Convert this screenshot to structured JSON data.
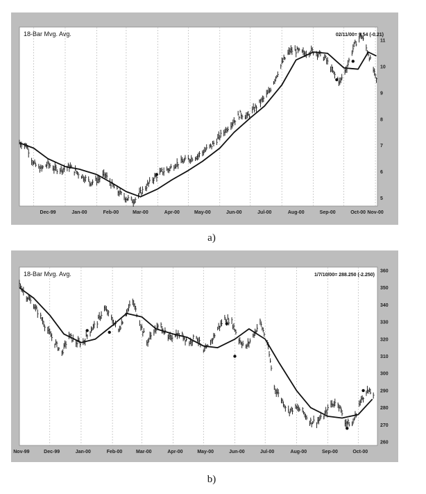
{
  "chart_data": [
    {
      "type": "line",
      "caption": "a)",
      "title": "18-Bar Mvg. Avg.",
      "readout": "02/11/00= 9.54 (-0.21)",
      "x_tick_labels": [
        "Dec-99",
        "Jan-00",
        "Feb-00",
        "Mar-00",
        "Apr-00",
        "May-00",
        "Jun-00",
        "Jul-00",
        "Aug-00",
        "Sep-00",
        "Oct-00",
        "Nov-00"
      ],
      "y_tick_labels": [
        "5",
        "6",
        "7",
        "8",
        "9",
        "10",
        "11"
      ],
      "ylim": [
        4.7,
        11.5
      ],
      "grid": true,
      "series": [
        {
          "kind": "price",
          "x": [
            "1999-11-17",
            "1999-11-24",
            "1999-12-01",
            "1999-12-08",
            "1999-12-15",
            "1999-12-22",
            "1999-12-29",
            "2000-01-05",
            "2000-01-12",
            "2000-01-19",
            "2000-01-26",
            "2000-02-02",
            "2000-02-09",
            "2000-02-16",
            "2000-02-23",
            "2000-03-01",
            "2000-03-08",
            "2000-03-15",
            "2000-03-22",
            "2000-03-29",
            "2000-04-05",
            "2000-04-12",
            "2000-04-19",
            "2000-04-26",
            "2000-05-03",
            "2000-05-10",
            "2000-05-17",
            "2000-05-24",
            "2000-05-31",
            "2000-06-07",
            "2000-06-14",
            "2000-06-21",
            "2000-06-28",
            "2000-07-05",
            "2000-07-12",
            "2000-07-19",
            "2000-07-26",
            "2000-08-02",
            "2000-08-09",
            "2000-08-16",
            "2000-08-23",
            "2000-08-30",
            "2000-09-06",
            "2000-09-13",
            "2000-09-20",
            "2000-09-27",
            "2000-10-04",
            "2000-10-11",
            "2000-10-18",
            "2000-10-25",
            "2000-11-01",
            "2000-11-02"
          ],
          "y": [
            7.1,
            7.0,
            6.3,
            6.1,
            6.3,
            6.1,
            6.1,
            6.2,
            6.0,
            5.8,
            5.6,
            5.7,
            5.9,
            5.5,
            5.2,
            5.0,
            4.9,
            5.2,
            5.5,
            5.8,
            6.0,
            6.1,
            6.3,
            6.4,
            6.5,
            6.6,
            6.8,
            7.0,
            7.3,
            7.6,
            7.9,
            8.2,
            8.1,
            8.4,
            8.7,
            9.0,
            9.6,
            10.2,
            10.6,
            10.6,
            10.5,
            10.6,
            10.5,
            10.3,
            9.8,
            9.4,
            10.0,
            10.8,
            11.2,
            10.5,
            9.6,
            9.5
          ]
        },
        {
          "kind": "moving-average",
          "x": [
            "1999-11-17",
            "1999-12-01",
            "1999-12-15",
            "2000-01-01",
            "2000-01-15",
            "2000-02-01",
            "2000-02-15",
            "2000-03-01",
            "2000-03-15",
            "2000-04-01",
            "2000-04-15",
            "2000-05-01",
            "2000-05-15",
            "2000-06-01",
            "2000-06-15",
            "2000-07-01",
            "2000-07-15",
            "2000-08-01",
            "2000-08-15",
            "2000-09-01",
            "2000-09-15",
            "2000-10-01",
            "2000-10-15",
            "2000-10-25",
            "2000-11-02"
          ],
          "y": [
            7.1,
            6.9,
            6.5,
            6.2,
            6.1,
            5.9,
            5.6,
            5.25,
            5.05,
            5.35,
            5.7,
            6.05,
            6.4,
            6.9,
            7.5,
            8.05,
            8.5,
            9.3,
            10.25,
            10.55,
            10.5,
            9.95,
            9.9,
            10.55,
            10.4
          ]
        }
      ],
      "markers": [
        {
          "x": "2000-03-31",
          "y": 5.9
        },
        {
          "x": "2000-09-24",
          "y": 9.5
        },
        {
          "x": "2000-10-10",
          "y": 10.2
        }
      ]
    },
    {
      "type": "line",
      "caption": "b)",
      "title": "18-Bar Mvg. Avg.",
      "readout": "1/7/10/00= 288.250 (-2.250)",
      "x_tick_labels": [
        "Nov-99",
        "Dec-99",
        "Jan-00",
        "Feb-00",
        "Mar-00",
        "Apr-00",
        "May-00",
        "Jun-00",
        "Jul-00",
        "Aug-00",
        "Sep-00",
        "Oct-00"
      ],
      "y_tick_labels": [
        "260",
        "270",
        "280",
        "290",
        "300",
        "310",
        "320",
        "330",
        "340",
        "350",
        "360"
      ],
      "ylim": [
        258,
        362
      ],
      "grid": true,
      "series": [
        {
          "kind": "price",
          "x": [
            "1999-11-01",
            "1999-11-08",
            "1999-11-15",
            "1999-11-22",
            "1999-11-29",
            "1999-12-06",
            "1999-12-13",
            "1999-12-20",
            "1999-12-27",
            "2000-01-03",
            "2000-01-10",
            "2000-01-17",
            "2000-01-24",
            "2000-01-31",
            "2000-02-07",
            "2000-02-14",
            "2000-02-21",
            "2000-02-28",
            "2000-03-06",
            "2000-03-13",
            "2000-03-20",
            "2000-03-27",
            "2000-04-03",
            "2000-04-10",
            "2000-04-17",
            "2000-04-24",
            "2000-05-01",
            "2000-05-08",
            "2000-05-15",
            "2000-05-22",
            "2000-05-29",
            "2000-06-05",
            "2000-06-12",
            "2000-06-19",
            "2000-06-26",
            "2000-07-03",
            "2000-07-10",
            "2000-07-17",
            "2000-07-24",
            "2000-07-31",
            "2000-08-07",
            "2000-08-14",
            "2000-08-21",
            "2000-08-28",
            "2000-09-04",
            "2000-09-11",
            "2000-09-18",
            "2000-09-25",
            "2000-10-02",
            "2000-10-09",
            "2000-10-16"
          ],
          "y": [
            352,
            345,
            340,
            333,
            325,
            318,
            312,
            322,
            318,
            318,
            325,
            330,
            338,
            332,
            325,
            335,
            342,
            330,
            318,
            325,
            328,
            320,
            323,
            322,
            318,
            322,
            312,
            318,
            326,
            332,
            330,
            320,
            315,
            322,
            330,
            318,
            292,
            285,
            278,
            280,
            278,
            272,
            272,
            275,
            282,
            283,
            272,
            270,
            282,
            290,
            288
          ]
        },
        {
          "kind": "moving-average",
          "x": [
            "1999-11-01",
            "1999-11-15",
            "1999-12-01",
            "1999-12-15",
            "2000-01-01",
            "2000-01-15",
            "2000-02-01",
            "2000-02-15",
            "2000-03-01",
            "2000-03-15",
            "2000-04-01",
            "2000-04-15",
            "2000-05-01",
            "2000-05-15",
            "2000-06-01",
            "2000-06-15",
            "2000-07-01",
            "2000-07-15",
            "2000-08-01",
            "2000-08-15",
            "2000-09-01",
            "2000-09-15",
            "2000-10-01",
            "2000-10-15"
          ],
          "y": [
            350,
            344,
            334,
            323,
            318,
            320,
            328,
            335,
            333,
            326,
            323,
            321,
            316,
            315,
            320,
            326,
            320,
            306,
            290,
            280,
            275,
            274,
            276,
            285
          ]
        }
      ],
      "markers": [
        {
          "x": "2000-01-07",
          "y": 325
        },
        {
          "x": "2000-01-29",
          "y": 324
        },
        {
          "x": "2000-05-24",
          "y": 329
        },
        {
          "x": "2000-06-01",
          "y": 310
        },
        {
          "x": "2000-09-20",
          "y": 268
        },
        {
          "x": "2000-10-06",
          "y": 290
        }
      ]
    }
  ]
}
